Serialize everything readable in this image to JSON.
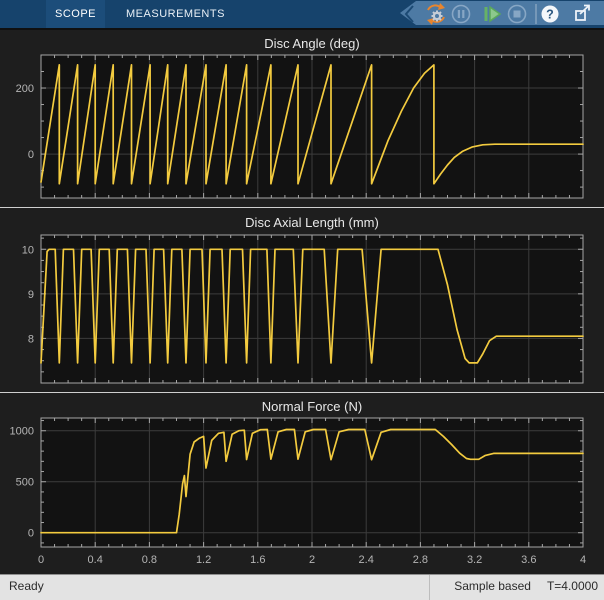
{
  "toolbar": {
    "tabs": [
      {
        "label": "SCOPE",
        "active": true
      },
      {
        "label": "MEASUREMENTS",
        "active": false
      }
    ],
    "help_glyph": "?",
    "icons": {
      "collapse": "chevron-left",
      "stepping_options": "gear-with-arrows",
      "pause": "pause-circle",
      "step_forward": "step-forward-play",
      "stop": "stop-circle",
      "help": "question-mark-circle",
      "undock": "expand-window-arrow"
    }
  },
  "status_bar": {
    "ready": "Ready",
    "sample_mode": "Sample based",
    "sim_time": "T=4.0000"
  },
  "colors": {
    "accent_yellow": "#f3cb3f",
    "toolbar_bg": "#16436c",
    "toolbar_tab_active": "#1c4d7a",
    "toolbar_panel": "#4d7aa4",
    "scope_bg": "#1e1e1e",
    "plot_bg": "#121212",
    "grid": "#3c3c3c",
    "axis": "#a6a6a6",
    "tick_label": "#b5b5b5",
    "title": "#e8e8e8",
    "status_bg": "#e3e3e3"
  },
  "chart_data": {
    "plots": [
      {
        "type": "line",
        "title": "Disc Angle (deg)",
        "xlim": [
          0,
          4
        ],
        "ylim": [
          -133,
          300
        ],
        "xticks": [
          0,
          0.4,
          0.8,
          1.2,
          1.6,
          2,
          2.4,
          2.8,
          3.2,
          3.6,
          4
        ],
        "xtick_labels": [
          "0",
          "0.4",
          "0.8",
          "1.2",
          "1.6",
          "2",
          "2.4",
          "2.8",
          "3.2",
          "3.6",
          "4"
        ],
        "yticks": [
          0,
          200
        ],
        "ytick_labels": [
          "0",
          "200"
        ],
        "x_minor": 0.1,
        "y_minor": 50,
        "show_x_labels": false,
        "box": {
          "l": 41,
          "t": 25,
          "r": 583,
          "b": 168
        },
        "series": {
          "points": [
            [
              0,
              -85
            ],
            [
              0.135,
              270
            ],
            [
              0.135,
              -90
            ],
            [
              0.27,
              270
            ],
            [
              0.27,
              -90
            ],
            [
              0.4,
              270
            ],
            [
              0.4,
              -90
            ],
            [
              0.533,
              270
            ],
            [
              0.533,
              -90
            ],
            [
              0.668,
              270
            ],
            [
              0.668,
              -90
            ],
            [
              0.805,
              270
            ],
            [
              0.805,
              -90
            ],
            [
              0.935,
              270
            ],
            [
              0.935,
              -90
            ],
            [
              1.07,
              270
            ],
            [
              1.07,
              -90
            ],
            [
              1.218,
              270
            ],
            [
              1.218,
              -90
            ],
            [
              1.366,
              270
            ],
            [
              1.366,
              -90
            ],
            [
              1.517,
              270
            ],
            [
              1.517,
              -90
            ],
            [
              1.697,
              270
            ],
            [
              1.697,
              -90
            ],
            [
              1.897,
              270
            ],
            [
              1.897,
              -90
            ],
            [
              2.14,
              270
            ],
            [
              2.14,
              -90
            ],
            [
              2.44,
              270
            ],
            [
              2.44,
              -90
            ],
            [
              2.56,
              40
            ],
            [
              2.66,
              130
            ],
            [
              2.75,
              200
            ],
            [
              2.83,
              245
            ],
            [
              2.9,
              270
            ],
            [
              2.9,
              -90
            ],
            [
              2.95,
              -60
            ],
            [
              3.0,
              -33
            ],
            [
              3.05,
              -10
            ],
            [
              3.11,
              8
            ],
            [
              3.18,
              21
            ],
            [
              3.26,
              28
            ],
            [
              3.35,
              30
            ],
            [
              4,
              30
            ]
          ]
        }
      },
      {
        "type": "line",
        "title": "Disc Axial Length (mm)",
        "xlim": [
          0,
          4
        ],
        "ylim": [
          7.0,
          10.32
        ],
        "xticks": [
          0,
          0.4,
          0.8,
          1.2,
          1.6,
          2,
          2.4,
          2.8,
          3.2,
          3.6,
          4
        ],
        "xtick_labels": [
          "0",
          "0.4",
          "0.8",
          "1.2",
          "1.6",
          "2",
          "2.4",
          "2.8",
          "3.2",
          "3.6",
          "4"
        ],
        "yticks": [
          8,
          9,
          10
        ],
        "ytick_labels": [
          "8",
          "9",
          "10"
        ],
        "x_minor": 0.1,
        "y_minor": 0.25,
        "show_x_labels": false,
        "box": {
          "l": 41,
          "t": 27,
          "r": 583,
          "b": 175
        },
        "series": {
          "points": [
            [
              0,
              7.45
            ],
            [
              0.045,
              9.95
            ],
            [
              0.06,
              10
            ],
            [
              0.105,
              10
            ],
            [
              0.135,
              7.45
            ],
            [
              0.165,
              10
            ],
            [
              0.24,
              10
            ],
            [
              0.27,
              7.45
            ],
            [
              0.3,
              10
            ],
            [
              0.37,
              10
            ],
            [
              0.4,
              7.45
            ],
            [
              0.43,
              10
            ],
            [
              0.503,
              10
            ],
            [
              0.533,
              7.45
            ],
            [
              0.563,
              10
            ],
            [
              0.638,
              10
            ],
            [
              0.668,
              7.45
            ],
            [
              0.698,
              10
            ],
            [
              0.775,
              10
            ],
            [
              0.805,
              7.45
            ],
            [
              0.835,
              10
            ],
            [
              0.905,
              10
            ],
            [
              0.935,
              7.45
            ],
            [
              0.965,
              10
            ],
            [
              1.04,
              10
            ],
            [
              1.07,
              7.45
            ],
            [
              1.1,
              10
            ],
            [
              1.188,
              10
            ],
            [
              1.218,
              7.45
            ],
            [
              1.248,
              10
            ],
            [
              1.336,
              10
            ],
            [
              1.366,
              7.45
            ],
            [
              1.396,
              10
            ],
            [
              1.487,
              10
            ],
            [
              1.517,
              7.45
            ],
            [
              1.547,
              10
            ],
            [
              1.667,
              10
            ],
            [
              1.697,
              7.45
            ],
            [
              1.727,
              10
            ],
            [
              1.862,
              10
            ],
            [
              1.897,
              7.45
            ],
            [
              1.932,
              10
            ],
            [
              2.09,
              10
            ],
            [
              2.14,
              7.45
            ],
            [
              2.19,
              10
            ],
            [
              2.37,
              10
            ],
            [
              2.44,
              7.45
            ],
            [
              2.51,
              10
            ],
            [
              2.93,
              10
            ],
            [
              3.0,
              9.2
            ],
            [
              3.07,
              8.2
            ],
            [
              3.13,
              7.55
            ],
            [
              3.16,
              7.45
            ],
            [
              3.22,
              7.45
            ],
            [
              3.26,
              7.65
            ],
            [
              3.31,
              7.95
            ],
            [
              3.36,
              8.05
            ],
            [
              4,
              8.05
            ]
          ]
        }
      },
      {
        "type": "line",
        "title": "Normal Force (N)",
        "xlim": [
          0,
          4
        ],
        "ylim": [
          -140,
          1125
        ],
        "xticks": [
          0,
          0.4,
          0.8,
          1.2,
          1.6,
          2,
          2.4,
          2.8,
          3.2,
          3.6,
          4
        ],
        "xtick_labels": [
          "0",
          "0.4",
          "0.8",
          "1.2",
          "1.6",
          "2",
          "2.4",
          "2.8",
          "3.2",
          "3.6",
          "4"
        ],
        "yticks": [
          0,
          500,
          1000
        ],
        "ytick_labels": [
          "0",
          "500",
          "1000"
        ],
        "x_minor": 0.1,
        "y_minor": 100,
        "show_x_labels": true,
        "box": {
          "l": 41,
          "t": 25,
          "r": 583,
          "b": 154
        },
        "series": {
          "points": [
            [
              0,
              0
            ],
            [
              1.0,
              0
            ],
            [
              1.02,
              180
            ],
            [
              1.045,
              480
            ],
            [
              1.058,
              560
            ],
            [
              1.07,
              355
            ],
            [
              1.1,
              770
            ],
            [
              1.13,
              890
            ],
            [
              1.17,
              928
            ],
            [
              1.2,
              945
            ],
            [
              1.218,
              635
            ],
            [
              1.26,
              905
            ],
            [
              1.31,
              975
            ],
            [
              1.35,
              985
            ],
            [
              1.366,
              700
            ],
            [
              1.41,
              965
            ],
            [
              1.46,
              1000
            ],
            [
              1.5,
              1005
            ],
            [
              1.517,
              718
            ],
            [
              1.56,
              975
            ],
            [
              1.62,
              1010
            ],
            [
              1.67,
              1012
            ],
            [
              1.697,
              722
            ],
            [
              1.75,
              990
            ],
            [
              1.81,
              1012
            ],
            [
              1.87,
              1012
            ],
            [
              1.897,
              722
            ],
            [
              1.95,
              990
            ],
            [
              2.01,
              1012
            ],
            [
              2.1,
              1012
            ],
            [
              2.14,
              716
            ],
            [
              2.2,
              990
            ],
            [
              2.27,
              1012
            ],
            [
              2.39,
              1012
            ],
            [
              2.44,
              716
            ],
            [
              2.51,
              985
            ],
            [
              2.58,
              1012
            ],
            [
              2.91,
              1012
            ],
            [
              2.97,
              945
            ],
            [
              3.03,
              865
            ],
            [
              3.09,
              780
            ],
            [
              3.14,
              728
            ],
            [
              3.17,
              720
            ],
            [
              3.23,
              720
            ],
            [
              3.28,
              758
            ],
            [
              3.34,
              778
            ],
            [
              4,
              778
            ]
          ]
        }
      }
    ]
  }
}
